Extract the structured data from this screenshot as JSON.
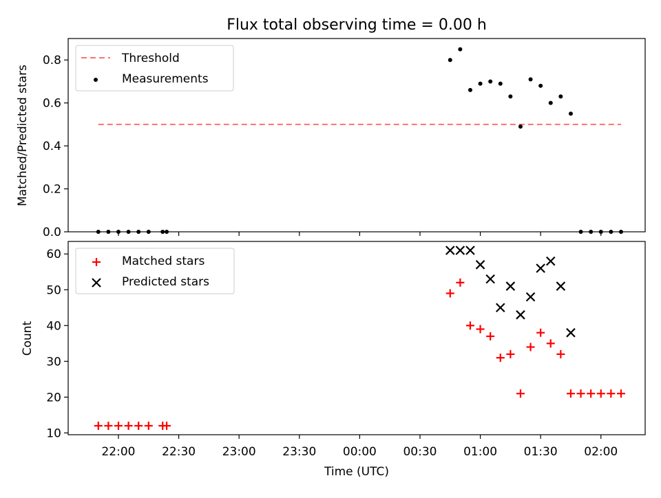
{
  "colors": {
    "threshold": "#ff7070",
    "measurement": "#000000",
    "matched": "#ff0000",
    "predicted": "#000000"
  },
  "chart_data": [
    {
      "type": "scatter",
      "title": "Flux total observing time = 0.00 h",
      "xlabel": "",
      "ylabel": "Matched/Predicted stars",
      "ylim": [
        0,
        0.9
      ],
      "yticks": [
        0.0,
        0.2,
        0.4,
        0.6,
        0.8
      ],
      "ytick_labels": [
        "0.0",
        "0.2",
        "0.4",
        "0.6",
        "0.8"
      ],
      "legend": {
        "position": "top-left",
        "entries": [
          "Threshold",
          "Measurements"
        ]
      },
      "threshold": {
        "name": "Threshold",
        "value": 0.5,
        "x_start": "21:50",
        "x_end": "02:10",
        "style": "dashed"
      },
      "series": [
        {
          "name": "Measurements",
          "marker": "dot",
          "x": [
            "21:50",
            "21:55",
            "22:00",
            "22:05",
            "22:10",
            "22:15",
            "22:22",
            "22:24",
            "00:45",
            "00:50",
            "00:55",
            "01:00",
            "01:05",
            "01:10",
            "01:15",
            "01:20",
            "01:25",
            "01:30",
            "01:35",
            "01:40",
            "01:45",
            "01:50",
            "01:55",
            "02:00",
            "02:05",
            "02:10"
          ],
          "y": [
            0,
            0,
            0,
            0,
            0,
            0,
            0,
            0,
            0.8,
            0.85,
            0.66,
            0.69,
            0.7,
            0.69,
            0.63,
            0.49,
            0.71,
            0.68,
            0.6,
            0.63,
            0.55,
            0,
            0,
            0,
            0,
            0
          ]
        }
      ]
    },
    {
      "type": "scatter",
      "title": "",
      "xlabel": "Time (UTC)",
      "ylabel": "Count",
      "ylim": [
        9.5,
        63.5
      ],
      "yticks": [
        10,
        20,
        30,
        40,
        50,
        60
      ],
      "ytick_labels": [
        "10",
        "20",
        "30",
        "40",
        "50",
        "60"
      ],
      "xlim": [
        "21:35",
        "02:22"
      ],
      "xticks": [
        "22:00",
        "22:30",
        "23:00",
        "23:30",
        "00:00",
        "00:30",
        "01:00",
        "01:30",
        "02:00"
      ],
      "xtick_labels": [
        "22:00",
        "22:30",
        "23:00",
        "23:30",
        "00:00",
        "00:30",
        "01:00",
        "01:30",
        "02:00"
      ],
      "legend": {
        "position": "top-left",
        "entries": [
          "Matched stars",
          "Predicted stars"
        ]
      },
      "series": [
        {
          "name": "Matched stars",
          "marker": "plus",
          "x": [
            "21:50",
            "21:55",
            "22:00",
            "22:05",
            "22:10",
            "22:15",
            "22:22",
            "22:24",
            "00:45",
            "00:50",
            "00:55",
            "01:00",
            "01:05",
            "01:10",
            "01:15",
            "01:20",
            "01:25",
            "01:30",
            "01:35",
            "01:40",
            "01:45",
            "01:50",
            "01:55",
            "02:00",
            "02:05",
            "02:10"
          ],
          "y": [
            12,
            12,
            12,
            12,
            12,
            12,
            12,
            12,
            49,
            52,
            40,
            39,
            37,
            31,
            32,
            21,
            34,
            38,
            35,
            32,
            21,
            21,
            21,
            21,
            21,
            21
          ]
        },
        {
          "name": "Predicted stars",
          "marker": "x",
          "x": [
            "00:45",
            "00:50",
            "00:55",
            "01:00",
            "01:05",
            "01:10",
            "01:15",
            "01:20",
            "01:25",
            "01:30",
            "01:35",
            "01:40",
            "01:45"
          ],
          "y": [
            61,
            61,
            61,
            57,
            53,
            45,
            51,
            43,
            48,
            56,
            58,
            51,
            38
          ]
        }
      ]
    }
  ]
}
